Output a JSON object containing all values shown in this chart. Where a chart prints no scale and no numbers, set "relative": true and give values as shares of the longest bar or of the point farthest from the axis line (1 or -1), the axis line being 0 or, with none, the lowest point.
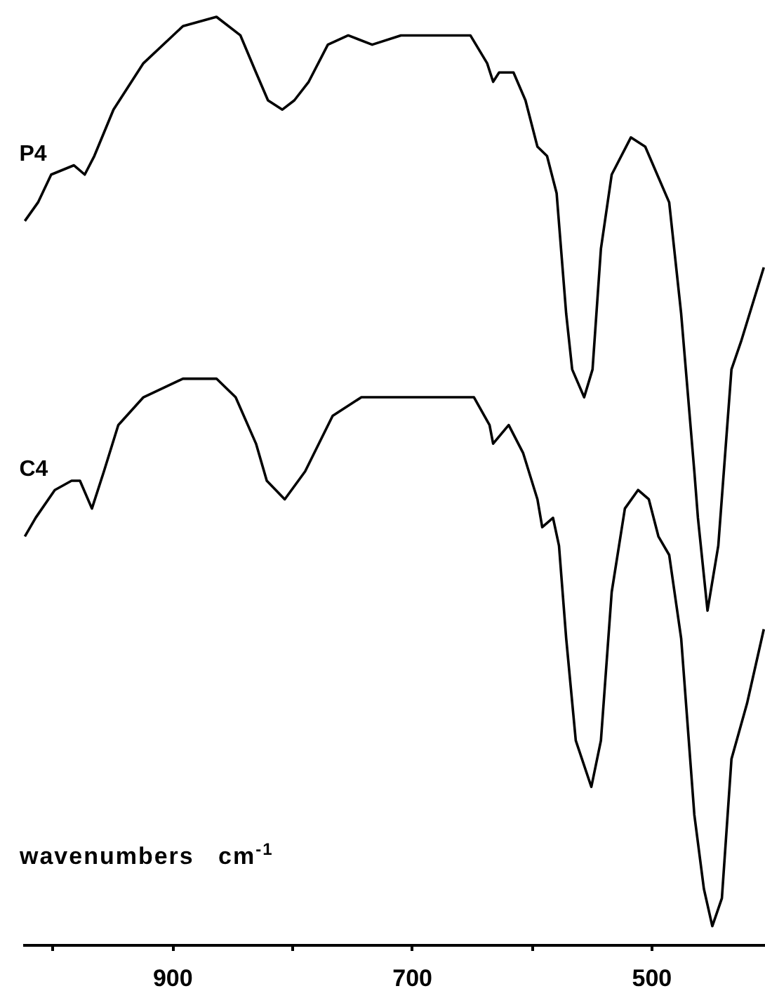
{
  "chart_data": {
    "type": "line",
    "relative": true,
    "xlabel": "wavenumbers   cm$^{-1}$",
    "xlim": [
      1025,
      405
    ],
    "xticks": [
      {
        "value": 1000,
        "label": null
      },
      900,
      {
        "value": 800,
        "label": null
      },
      700,
      {
        "value": 600,
        "label": null
      },
      500
    ],
    "grid": false,
    "x": [
      1023,
      1012,
      1001,
      982,
      973,
      965,
      949,
      924,
      891,
      863,
      843,
      830,
      820,
      808,
      798,
      786,
      770,
      753,
      733,
      709,
      676,
      651,
      637,
      632,
      627,
      615,
      605,
      595,
      587,
      579,
      571,
      566,
      556,
      549,
      542,
      533,
      517,
      505,
      485,
      475,
      464,
      461,
      453,
      444,
      433,
      425,
      406
    ],
    "series": [
      {
        "name": "P4",
        "color": "#000000",
        "values": [
          0.78,
          0.8,
          0.83,
          0.84,
          0.83,
          0.85,
          0.9,
          0.95,
          0.99,
          1.0,
          0.98,
          0.94,
          0.91,
          0.9,
          0.91,
          0.93,
          0.97,
          0.98,
          0.97,
          0.98,
          0.98,
          0.98,
          0.95,
          0.93,
          0.94,
          0.94,
          0.91,
          0.86,
          0.85,
          0.81,
          0.68,
          0.62,
          0.59,
          0.62,
          0.75,
          0.83,
          0.87,
          0.86,
          0.8,
          0.68,
          0.51,
          0.46,
          0.36,
          0.43,
          0.62,
          0.65,
          0.73
        ]
      },
      {
        "name": "C4",
        "color": "#000000",
        "x": [
          1023,
          1014,
          998,
          984,
          977,
          967,
          957,
          945,
          924,
          891,
          863,
          847,
          830,
          821,
          806,
          789,
          766,
          742,
          704,
          689,
          664,
          648,
          635,
          632,
          619,
          607,
          595,
          591,
          582,
          577,
          571,
          563,
          550,
          542,
          533,
          522,
          511,
          502,
          494,
          485,
          475,
          464,
          456,
          449,
          441,
          433,
          420,
          406
        ],
        "values": [
          0.44,
          0.46,
          0.49,
          0.5,
          0.5,
          0.47,
          0.51,
          0.56,
          0.59,
          0.61,
          0.61,
          0.59,
          0.54,
          0.5,
          0.48,
          0.51,
          0.57,
          0.59,
          0.59,
          0.59,
          0.59,
          0.59,
          0.56,
          0.54,
          0.56,
          0.53,
          0.48,
          0.45,
          0.46,
          0.43,
          0.33,
          0.22,
          0.17,
          0.22,
          0.38,
          0.47,
          0.49,
          0.48,
          0.44,
          0.42,
          0.33,
          0.14,
          0.06,
          0.02,
          0.05,
          0.2,
          0.26,
          0.34
        ]
      }
    ]
  }
}
